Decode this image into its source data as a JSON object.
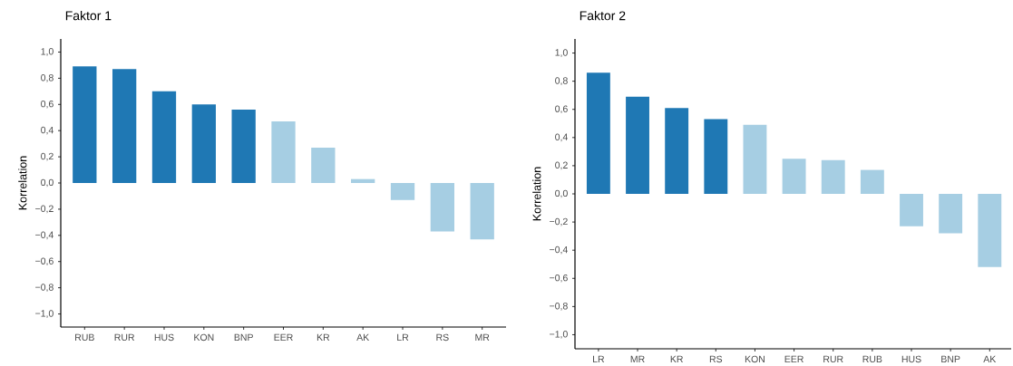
{
  "chart_data": [
    {
      "type": "bar",
      "title": "Faktor 1",
      "ylabel": "Korrelation",
      "categories": [
        "RUB",
        "RUR",
        "HUS",
        "KON",
        "BNP",
        "EER",
        "KR",
        "AK",
        "LR",
        "RS",
        "MR"
      ],
      "values": [
        0.89,
        0.87,
        0.7,
        0.6,
        0.56,
        0.47,
        0.27,
        0.03,
        -0.13,
        -0.37,
        -0.43
      ],
      "colors": [
        "#1f78b4",
        "#1f78b4",
        "#1f78b4",
        "#1f78b4",
        "#1f78b4",
        "#a6cee3",
        "#a6cee3",
        "#a6cee3",
        "#a6cee3",
        "#a6cee3",
        "#a6cee3"
      ],
      "ylim": [
        -1.1,
        1.1
      ],
      "yticks": [
        {
          "value": -1.0,
          "label": "−1,0"
        },
        {
          "value": -0.8,
          "label": "−0,8"
        },
        {
          "value": -0.6,
          "label": "−0,6"
        },
        {
          "value": -0.4,
          "label": "−0,4"
        },
        {
          "value": -0.2,
          "label": "−0,2"
        },
        {
          "value": 0.0,
          "label": "0,0"
        },
        {
          "value": 0.2,
          "label": "0,2"
        },
        {
          "value": 0.4,
          "label": "0,4"
        },
        {
          "value": 0.6,
          "label": "0,6"
        },
        {
          "value": 0.8,
          "label": "0,8"
        },
        {
          "value": 1.0,
          "label": "1,0"
        }
      ],
      "grid": false
    },
    {
      "type": "bar",
      "title": "Faktor 2",
      "ylabel": "Korrelation",
      "categories": [
        "LR",
        "MR",
        "KR",
        "RS",
        "KON",
        "EER",
        "RUR",
        "RUB",
        "HUS",
        "BNP",
        "AK"
      ],
      "values": [
        0.86,
        0.69,
        0.61,
        0.53,
        0.49,
        0.25,
        0.24,
        0.17,
        -0.23,
        -0.28,
        -0.52
      ],
      "colors": [
        "#1f78b4",
        "#1f78b4",
        "#1f78b4",
        "#1f78b4",
        "#a6cee3",
        "#a6cee3",
        "#a6cee3",
        "#a6cee3",
        "#a6cee3",
        "#a6cee3",
        "#a6cee3"
      ],
      "ylim": [
        -1.1,
        1.1
      ],
      "yticks": [
        {
          "value": -1.0,
          "label": "−1,0"
        },
        {
          "value": -0.8,
          "label": "−0,8"
        },
        {
          "value": -0.6,
          "label": "−0,6"
        },
        {
          "value": -0.4,
          "label": "−0,4"
        },
        {
          "value": -0.2,
          "label": "−0,2"
        },
        {
          "value": 0.0,
          "label": "0,0"
        },
        {
          "value": 0.2,
          "label": "0,2"
        },
        {
          "value": 0.4,
          "label": "0,4"
        },
        {
          "value": 0.6,
          "label": "0,6"
        },
        {
          "value": 0.8,
          "label": "0,8"
        },
        {
          "value": 1.0,
          "label": "1,0"
        }
      ],
      "grid": false
    }
  ]
}
